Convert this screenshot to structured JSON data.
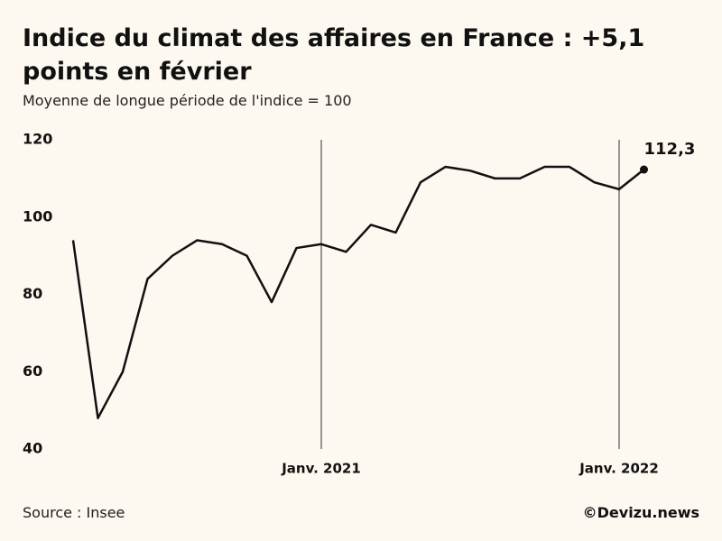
{
  "chart_data": {
    "type": "line",
    "title": "Indice du climat des affaires en France : +5,1 points en février",
    "subtitle": "Moyenne de longue période de l'indice = 100",
    "source": "Source : Insee",
    "credit": "©Devizu.news",
    "categories": [
      null,
      null,
      null,
      null,
      null,
      null,
      null,
      null,
      null,
      null,
      "Janv. 2021",
      null,
      null,
      null,
      null,
      null,
      null,
      null,
      null,
      null,
      null,
      null,
      "Janv. 2022",
      null
    ],
    "series": [
      {
        "color": "#111111",
        "values": [
          94,
          48,
          60,
          84,
          90,
          94,
          93,
          90,
          78,
          92,
          93,
          91,
          98,
          96,
          109,
          113,
          112,
          110,
          110,
          113,
          113,
          109,
          107.2,
          112.3
        ],
        "value_labels": [
          null,
          null,
          null,
          null,
          null,
          null,
          null,
          null,
          null,
          null,
          null,
          null,
          null,
          null,
          null,
          null,
          null,
          null,
          null,
          null,
          null,
          null,
          null,
          "112,3"
        ]
      }
    ],
    "ylim": [
      40,
      120
    ],
    "yticks": [
      40,
      60,
      80,
      100,
      120
    ],
    "grid": true
  }
}
